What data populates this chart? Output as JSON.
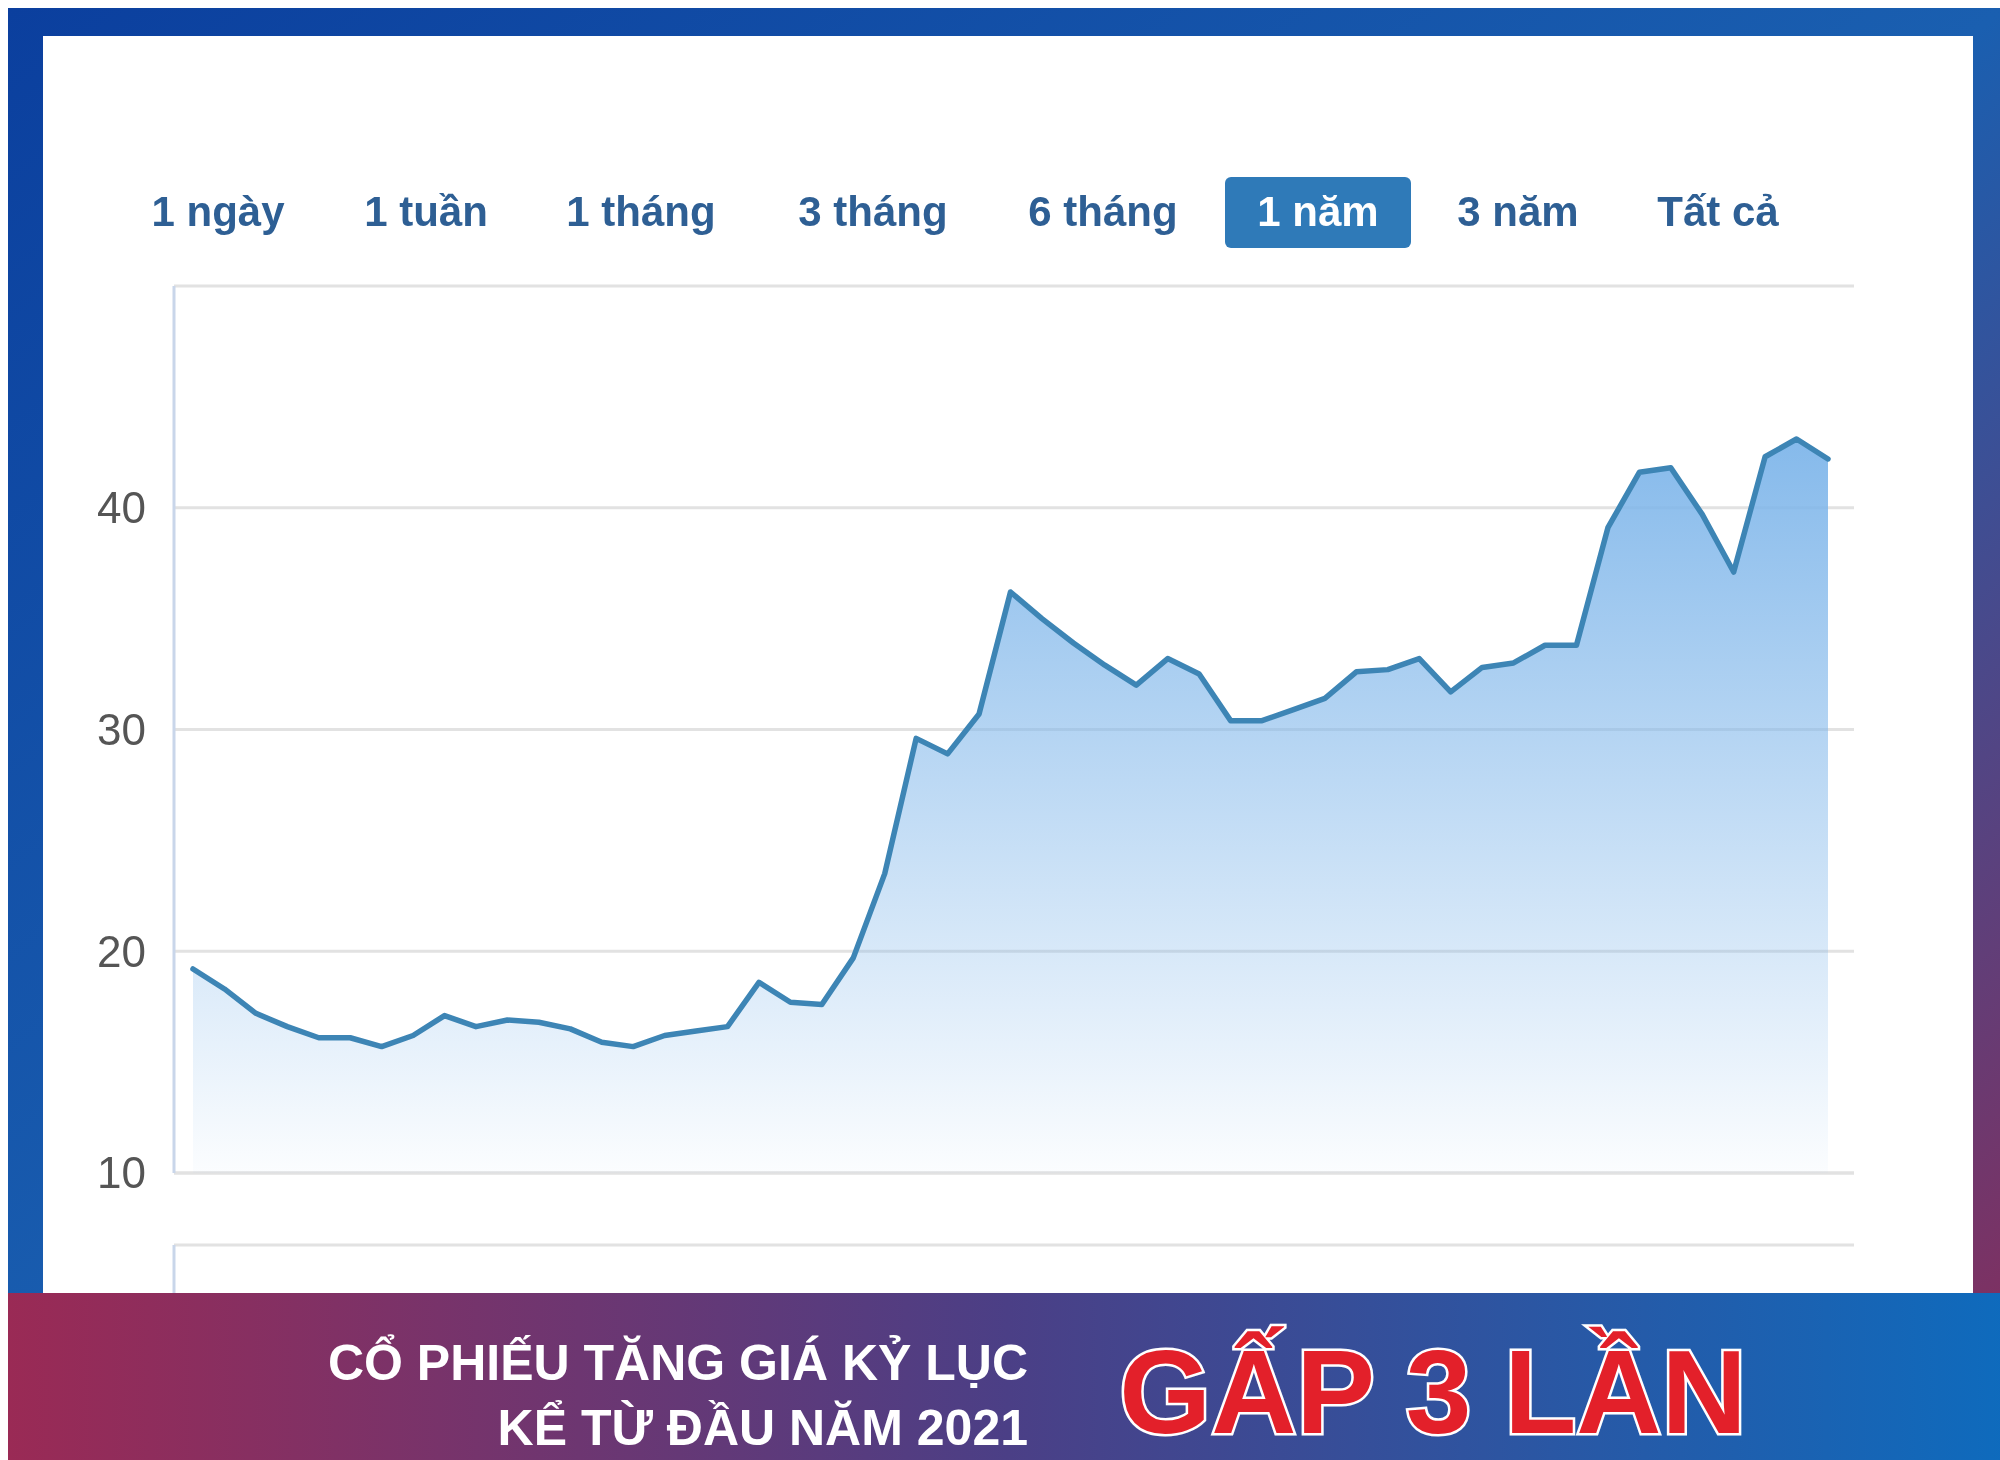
{
  "chart_data": {
    "type": "area",
    "title": "CỔ PHIẾU TĂNG GIÁ KỶ LỤC",
    "subtitle": "KỂ TỪ ĐẦU NĂM 2021",
    "annotations": [
      "GẤP 3 LẦN",
      "1 ngày",
      "1 tuần",
      "1 tháng",
      "3 tháng",
      "6 tháng",
      "1 năm",
      "3 năm",
      "Tất cả"
    ],
    "categories": [
      null,
      null,
      null,
      null,
      null,
      null,
      null,
      null,
      null,
      null,
      null,
      null,
      null,
      null,
      null,
      null,
      null,
      null,
      null,
      null,
      null,
      null,
      null,
      null,
      null,
      null,
      null,
      null,
      null,
      null,
      null,
      null,
      null,
      null,
      null,
      null,
      null,
      null,
      null,
      null,
      null,
      null,
      null,
      null,
      null,
      null,
      null,
      null,
      null,
      null,
      null,
      null,
      null
    ],
    "series": [
      {
        "color": "#3d85b5",
        "values": [
          19.2,
          18.3,
          17.2,
          16.6,
          16.1,
          16.1,
          15.7,
          16.2,
          17.1,
          16.6,
          16.9,
          16.8,
          16.5,
          15.9,
          15.7,
          16.2,
          16.4,
          16.6,
          18.6,
          17.7,
          17.6,
          19.7,
          23.5,
          29.6,
          28.9,
          30.7,
          36.2,
          35.0,
          33.9,
          32.9,
          32.0,
          33.2,
          32.5,
          30.4,
          30.4,
          30.9,
          31.4,
          32.6,
          32.7,
          33.2,
          31.7,
          32.8,
          33.0,
          33.8,
          33.8,
          39.1,
          41.6,
          41.8,
          39.7,
          37.1,
          42.3,
          43.1,
          42.2
        ]
      }
    ],
    "ylim": [
      10,
      50
    ],
    "yticks": [
      10,
      20,
      30,
      40
    ],
    "grid": "y",
    "marker": "none",
    "line_style": "solid"
  }
}
